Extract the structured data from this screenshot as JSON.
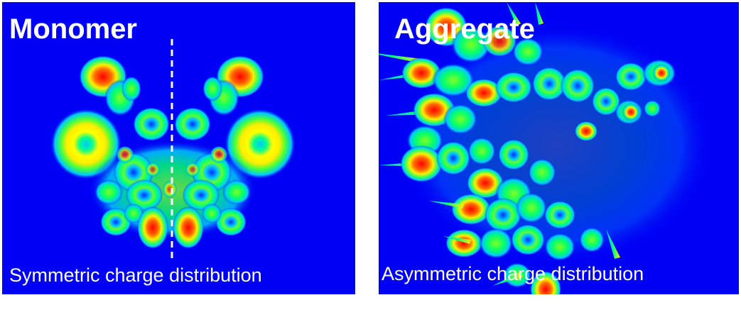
{
  "left_panel": {
    "title": "Monomer",
    "caption": "Symmetric charge distribution"
  },
  "right_panel": {
    "title": "Aggregate",
    "caption": "Asymmetric charge distribution"
  },
  "colors": {
    "background_blue": "#0000f5",
    "low": "#00c8ff",
    "mid_low": "#00ff80",
    "mid": "#ffff00",
    "high": "#ff8000",
    "peak": "#ff0000",
    "text": "#ffffff"
  }
}
